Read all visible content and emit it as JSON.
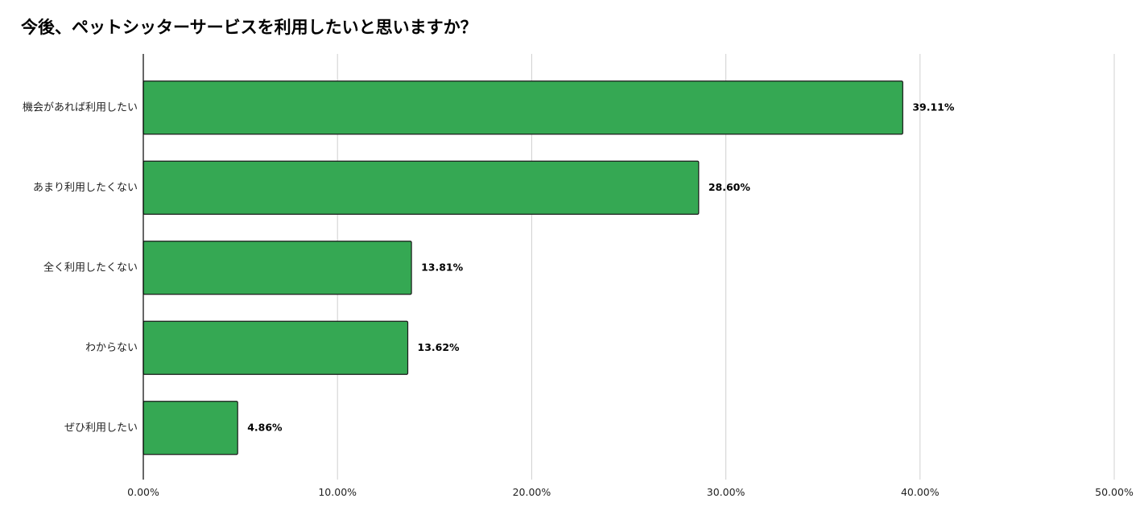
{
  "title": "今後、ペットシッターサービスを利用したいと思いますか？",
  "chart_data": {
    "type": "bar",
    "orientation": "horizontal",
    "title": "今後、ペットシッターサービスを利用したいと思いますか？",
    "categories": [
      "機会があれば利用したい",
      "あまり利用したくない",
      "全く利用したくない",
      "わからない",
      "ぜひ利用したい"
    ],
    "values": [
      39.11,
      28.6,
      13.81,
      13.62,
      4.86
    ],
    "value_labels": [
      "39.11%",
      "28.60%",
      "13.81%",
      "13.62%",
      "4.86%"
    ],
    "xlim": [
      0,
      50
    ],
    "x_ticks": [
      0,
      10,
      20,
      30,
      40,
      50
    ],
    "x_tick_labels": [
      "0.00%",
      "10.00%",
      "20.00%",
      "30.00%",
      "40.00%",
      "50.00%"
    ],
    "xlabel": "",
    "ylabel": "",
    "grid": true,
    "legend": "none",
    "bar_color": "#35a853",
    "bar_stroke": "#1a1a1a",
    "grid_color": "#d0d0d0",
    "axis_color": "#000000"
  }
}
